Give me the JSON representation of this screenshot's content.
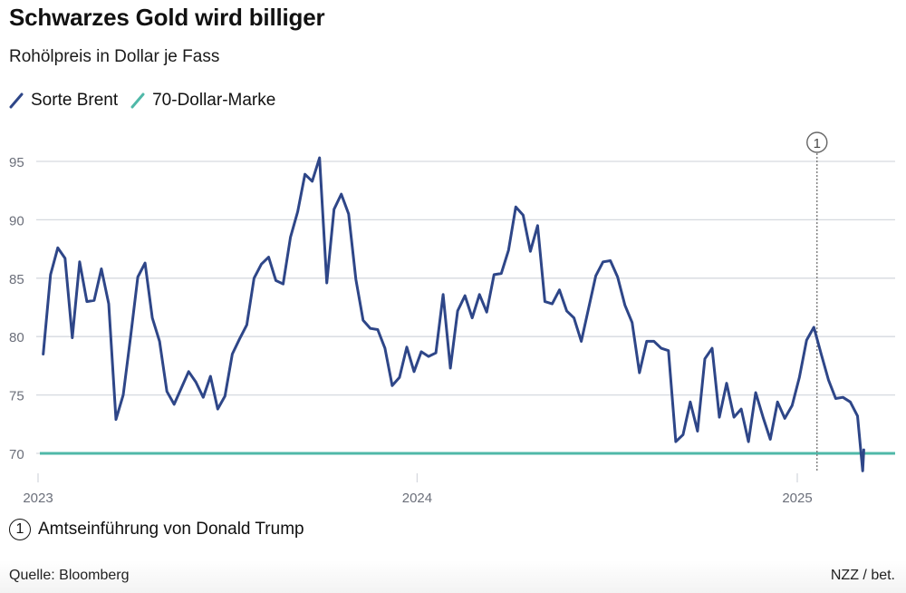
{
  "header": {
    "title": "Schwarzes Gold wird billiger",
    "subtitle": "Rohölpreis in Dollar je Fass"
  },
  "colors": {
    "brent": "#2e4688",
    "mark70": "#4fb8a8",
    "grid": "#d6d9df",
    "axis_text": "#6b6f7a",
    "annotation": "#666666"
  },
  "chart_data": {
    "type": "line",
    "title": "Schwarzes Gold wird billiger",
    "subtitle": "Rohölpreis in Dollar je Fass",
    "legend_placement": "top-left",
    "grid": true,
    "ylim": [
      68,
      96.5
    ],
    "xlim": [
      "2023-01-01",
      "2025-04-05"
    ],
    "y_ticks": [
      "70",
      "75",
      "80",
      "85",
      "90",
      "95"
    ],
    "x_ticks": [
      {
        "date": "2023-01-01",
        "label": "2023"
      },
      {
        "date": "2024-01-01",
        "label": "2024"
      },
      {
        "date": "2025-01-01",
        "label": "2025"
      }
    ],
    "series": [
      {
        "name": "Sorte Brent",
        "x": [
          "2023-01-06",
          "2023-01-13",
          "2023-01-20",
          "2023-01-27",
          "2023-02-03",
          "2023-02-10",
          "2023-02-17",
          "2023-02-24",
          "2023-03-03",
          "2023-03-10",
          "2023-03-17",
          "2023-03-24",
          "2023-03-31",
          "2023-04-07",
          "2023-04-14",
          "2023-04-21",
          "2023-04-28",
          "2023-05-05",
          "2023-05-12",
          "2023-05-19",
          "2023-05-26",
          "2023-06-02",
          "2023-06-09",
          "2023-06-16",
          "2023-06-23",
          "2023-06-30",
          "2023-07-07",
          "2023-07-14",
          "2023-07-21",
          "2023-07-28",
          "2023-08-04",
          "2023-08-11",
          "2023-08-18",
          "2023-08-25",
          "2023-09-01",
          "2023-09-08",
          "2023-09-15",
          "2023-09-22",
          "2023-09-29",
          "2023-10-06",
          "2023-10-13",
          "2023-10-20",
          "2023-10-27",
          "2023-11-03",
          "2023-11-10",
          "2023-11-17",
          "2023-11-24",
          "2023-12-01",
          "2023-12-08",
          "2023-12-15",
          "2023-12-22",
          "2023-12-29",
          "2024-01-05",
          "2024-01-12",
          "2024-01-19",
          "2024-01-26",
          "2024-02-02",
          "2024-02-09",
          "2024-02-16",
          "2024-02-23",
          "2024-03-01",
          "2024-03-08",
          "2024-03-15",
          "2024-03-22",
          "2024-03-29",
          "2024-04-05",
          "2024-04-12",
          "2024-04-19",
          "2024-04-26",
          "2024-05-03",
          "2024-05-10",
          "2024-05-17",
          "2024-05-24",
          "2024-05-31",
          "2024-06-07",
          "2024-06-14",
          "2024-06-21",
          "2024-06-28",
          "2024-07-05",
          "2024-07-12",
          "2024-07-19",
          "2024-07-26",
          "2024-08-02",
          "2024-08-09",
          "2024-08-16",
          "2024-08-23",
          "2024-08-30",
          "2024-09-06",
          "2024-09-13",
          "2024-09-20",
          "2024-09-27",
          "2024-10-04",
          "2024-10-11",
          "2024-10-18",
          "2024-10-25",
          "2024-11-01",
          "2024-11-08",
          "2024-11-15",
          "2024-11-22",
          "2024-11-29",
          "2024-12-06",
          "2024-12-13",
          "2024-12-20",
          "2024-12-27",
          "2025-01-03",
          "2025-01-10",
          "2025-01-17",
          "2025-01-24",
          "2025-01-31",
          "2025-02-07",
          "2025-02-14",
          "2025-02-21",
          "2025-02-28",
          "2025-03-05",
          "2025-03-06"
        ],
        "values": [
          78.5,
          85.3,
          87.6,
          86.7,
          79.9,
          86.4,
          83.0,
          83.1,
          85.8,
          82.8,
          72.9,
          75.0,
          79.9,
          85.1,
          86.3,
          81.6,
          79.6,
          75.3,
          74.2,
          75.6,
          77.0,
          76.1,
          74.8,
          76.6,
          73.8,
          74.9,
          78.5,
          79.8,
          81.0,
          85.0,
          86.2,
          86.8,
          84.8,
          84.5,
          88.5,
          90.7,
          93.9,
          93.3,
          95.3,
          84.6,
          90.9,
          92.2,
          90.5,
          84.9,
          81.4,
          80.7,
          80.6,
          79.0,
          75.8,
          76.5,
          79.1,
          77.0,
          78.7,
          78.3,
          78.6,
          83.6,
          77.3,
          82.2,
          83.5,
          81.6,
          83.6,
          82.1,
          85.3,
          85.4,
          87.4,
          91.1,
          90.4,
          87.3,
          89.5,
          83.0,
          82.8,
          84.0,
          82.2,
          81.6,
          79.6,
          82.4,
          85.2,
          86.4,
          86.5,
          85.1,
          82.7,
          81.2,
          76.9,
          79.6,
          79.6,
          79.0,
          78.8,
          71.0,
          71.6,
          74.4,
          71.9,
          78.1,
          79.0,
          73.1,
          76.0,
          73.1,
          73.8,
          71.0,
          75.2,
          73.1,
          71.2,
          74.4,
          73.0,
          74.1,
          76.5,
          79.7,
          80.8,
          78.5,
          76.3,
          74.7,
          74.8,
          74.4,
          73.2,
          68.5,
          70.3
        ]
      },
      {
        "name": "70-Dollar-Marke",
        "constant": 70
      }
    ],
    "annotations": [
      {
        "number": "1",
        "date": "2025-01-20",
        "text": "Amtseinführung von Donald Trump"
      }
    ]
  },
  "footer": {
    "source": "Quelle: Bloomberg",
    "credit": "NZZ / bet."
  }
}
